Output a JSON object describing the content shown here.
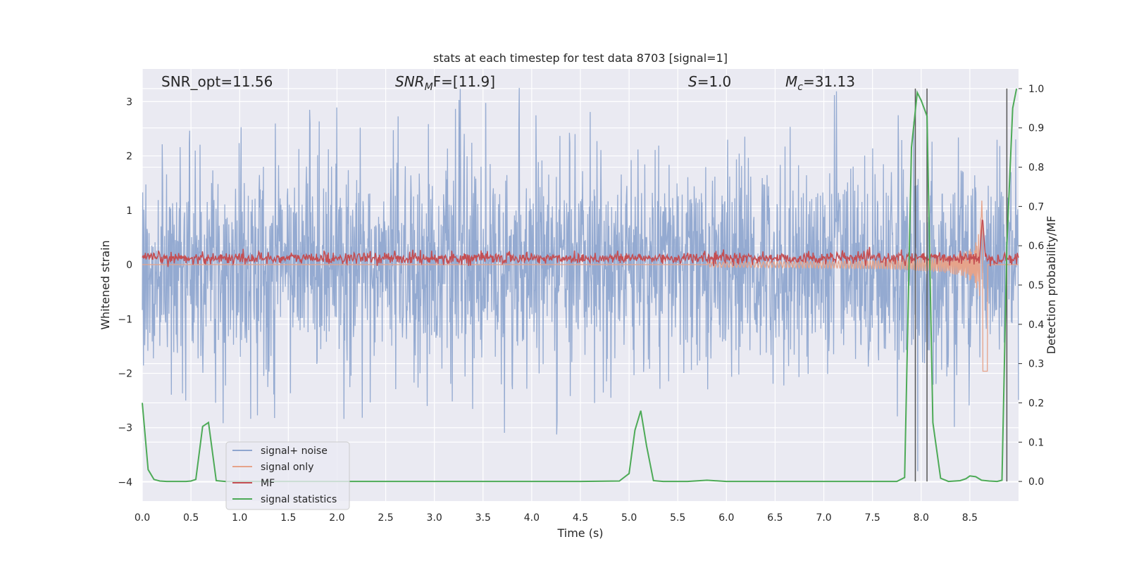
{
  "chart_data": {
    "type": "line",
    "title": "stats at each timestep for test data 8703 [signal=1]",
    "xlabel": "Time (s)",
    "ylabel": "Whitened strain",
    "ylabel_right": "Detection probability/MF",
    "xlim": [
      0.0,
      9.0
    ],
    "ylim": [
      -4.35,
      3.6
    ],
    "ylim_right": [
      -0.05,
      1.05
    ],
    "x_ticks": [
      "0.0",
      "0.5",
      "1.0",
      "1.5",
      "2.0",
      "2.5",
      "3.0",
      "3.5",
      "4.0",
      "4.5",
      "5.0",
      "5.5",
      "6.0",
      "6.5",
      "7.0",
      "7.5",
      "8.0",
      "8.5"
    ],
    "y_ticks": [
      "−4",
      "−3",
      "−2",
      "−1",
      "0",
      "1",
      "2",
      "3"
    ],
    "y_ticks_right": [
      "0.0",
      "0.1",
      "0.2",
      "0.3",
      "0.4",
      "0.5",
      "0.6",
      "0.7",
      "0.8",
      "0.9",
      "1.0"
    ],
    "grid": true,
    "legend_position": "lower-left",
    "annotations": {
      "snr_opt": "SNR_opt=11.56",
      "snr_mf_base": "SNR",
      "snr_mf_sub": "M",
      "snr_mf_rest": "F=[11.9]",
      "s_label": "S",
      "s_rest": "=1.0",
      "mc_label": "M",
      "mc_sub": "c",
      "mc_rest": "=31.13"
    },
    "vertical_lines_x": [
      7.94,
      8.06,
      8.88
    ],
    "series": [
      {
        "name": "signal+ noise",
        "color": "#8fa6cf",
        "axis": "left",
        "description_values": {
          "typical_range": [
            -2.0,
            2.2
          ],
          "max": 3.3,
          "min": -3.8
        }
      },
      {
        "name": "signal only",
        "color": "#e6a38a",
        "axis": "left",
        "chirp_start_x": 5.8,
        "chirp_peak_x": 8.63,
        "chirp_peak_amp": 2.4,
        "chirp_end_x": 8.68
      },
      {
        "name": "MF",
        "color": "#c44e52",
        "axis": "left",
        "baseline": 0.12,
        "noise_amp": 0.09,
        "peak_x": 8.63,
        "peak_value": 0.9
      },
      {
        "name": "signal statistics",
        "color": "#4daa57",
        "axis": "right",
        "x": [
          0.0,
          0.06,
          0.12,
          0.18,
          0.25,
          0.35,
          0.45,
          0.5,
          0.55,
          0.62,
          0.68,
          0.76,
          0.85,
          1.0,
          2.0,
          3.0,
          4.0,
          4.5,
          4.9,
          5.0,
          5.06,
          5.12,
          5.18,
          5.25,
          5.35,
          5.6,
          5.8,
          6.0,
          7.0,
          7.5,
          7.75,
          7.83,
          7.9,
          7.96,
          8.0,
          8.06,
          8.12,
          8.2,
          8.28,
          8.4,
          8.46,
          8.5,
          8.56,
          8.62,
          8.7,
          8.78,
          8.83,
          8.88,
          8.94,
          8.98
        ],
        "values": [
          0.2,
          0.03,
          0.005,
          0.001,
          0.0,
          0.0,
          0.0,
          0.001,
          0.005,
          0.14,
          0.15,
          0.002,
          0.0,
          0.0,
          0.0,
          0.0,
          0.0,
          0.0,
          0.001,
          0.02,
          0.13,
          0.18,
          0.09,
          0.002,
          0.0,
          0.0,
          0.003,
          0.0,
          0.0,
          0.0,
          0.0,
          0.01,
          0.85,
          0.99,
          0.97,
          0.93,
          0.15,
          0.008,
          0.0,
          0.002,
          0.007,
          0.014,
          0.012,
          0.003,
          0.001,
          0.0,
          0.003,
          0.6,
          0.95,
          1.0
        ]
      }
    ]
  }
}
